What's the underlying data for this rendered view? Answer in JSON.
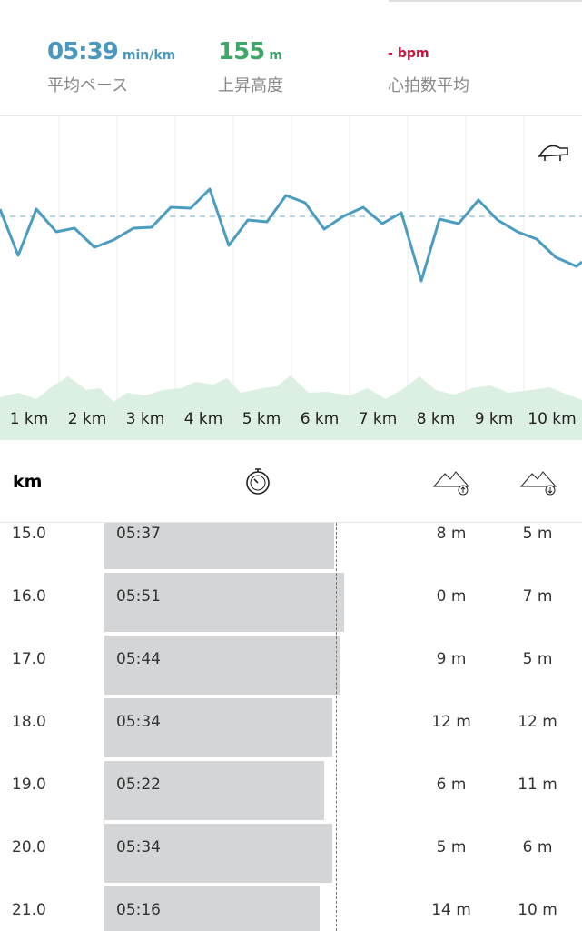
{
  "summary": {
    "pace": "05:39",
    "pace_unit": "min/km",
    "pace_label": "平均ペース",
    "elevation": "155",
    "elevation_unit": "m",
    "elevation_label": "上昇高度",
    "heart_rate": "-",
    "heart_rate_unit": "bpm",
    "heart_rate_label": "心拍数平均"
  },
  "chart": {
    "km_labels": [
      "1 km",
      "2 km",
      "3 km",
      "4 km",
      "5 km",
      "6 km",
      "7 km",
      "8 km",
      "9 km",
      "10 km"
    ]
  },
  "table": {
    "header": "km",
    "rows": [
      [
        "15.0",
        "05:37",
        "8 m",
        "5 m"
      ],
      [
        "16.0",
        "05:51",
        "0 m",
        "7 m"
      ],
      [
        "17.0",
        "05:44",
        "9 m",
        "5 m"
      ],
      [
        "18.0",
        "05:34",
        "12 m",
        "12 m"
      ],
      [
        "19.0",
        "05:22",
        "6 m",
        "11 m"
      ],
      [
        "20.0",
        "05:34",
        "5 m",
        "6 m"
      ],
      [
        "21.0",
        "05:16",
        "14 m",
        "10 m"
      ]
    ]
  }
}
